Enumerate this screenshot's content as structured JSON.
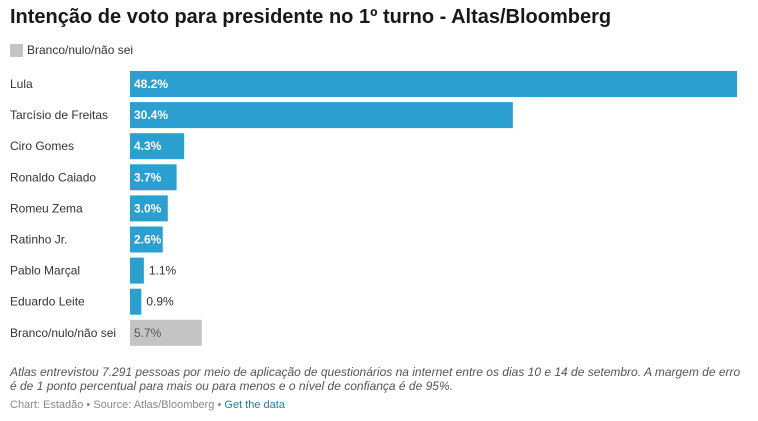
{
  "title": "Intenção de voto para presidente no 1º turno - Altas/Bloomberg",
  "legend": {
    "label": "Branco/nulo/não sei",
    "color": "#c4c4c4"
  },
  "colors": {
    "primary": "#2b9fcf",
    "other": "#c4c4c4"
  },
  "chart_data": {
    "type": "bar",
    "orientation": "horizontal",
    "categories": [
      "Lula",
      "Tarcísio de Freitas",
      "Ciro Gomes",
      "Ronaldo Caiado",
      "Romeu Zema",
      "Ratinho Jr.",
      "Pablo Marçal",
      "Eduardo Leite",
      "Branco/nulo/não sei"
    ],
    "values": [
      48.2,
      30.4,
      4.3,
      3.7,
      3.0,
      2.6,
      1.1,
      0.9,
      5.7
    ],
    "labels": [
      "48.2%",
      "30.4%",
      "4.3%",
      "3.7%",
      "3.0%",
      "2.6%",
      "1.1%",
      "0.9%",
      "5.7%"
    ],
    "highlight": [
      false,
      false,
      false,
      false,
      false,
      false,
      false,
      false,
      true
    ],
    "xlim": [
      0,
      48.2
    ]
  },
  "notes": "Atlas entrevistou 7.291 pessoas por meio de aplicação de questionários na internet entre os dias 10 e 14 de setembro. A margem de erro é de 1 ponto percentual para mais ou para menos e o nível de confiança é de 95%.",
  "footer": {
    "chart_credit": "Chart: Estadão",
    "separator": " • ",
    "source": "Source: Atlas/Bloomberg",
    "link": "Get the data"
  }
}
